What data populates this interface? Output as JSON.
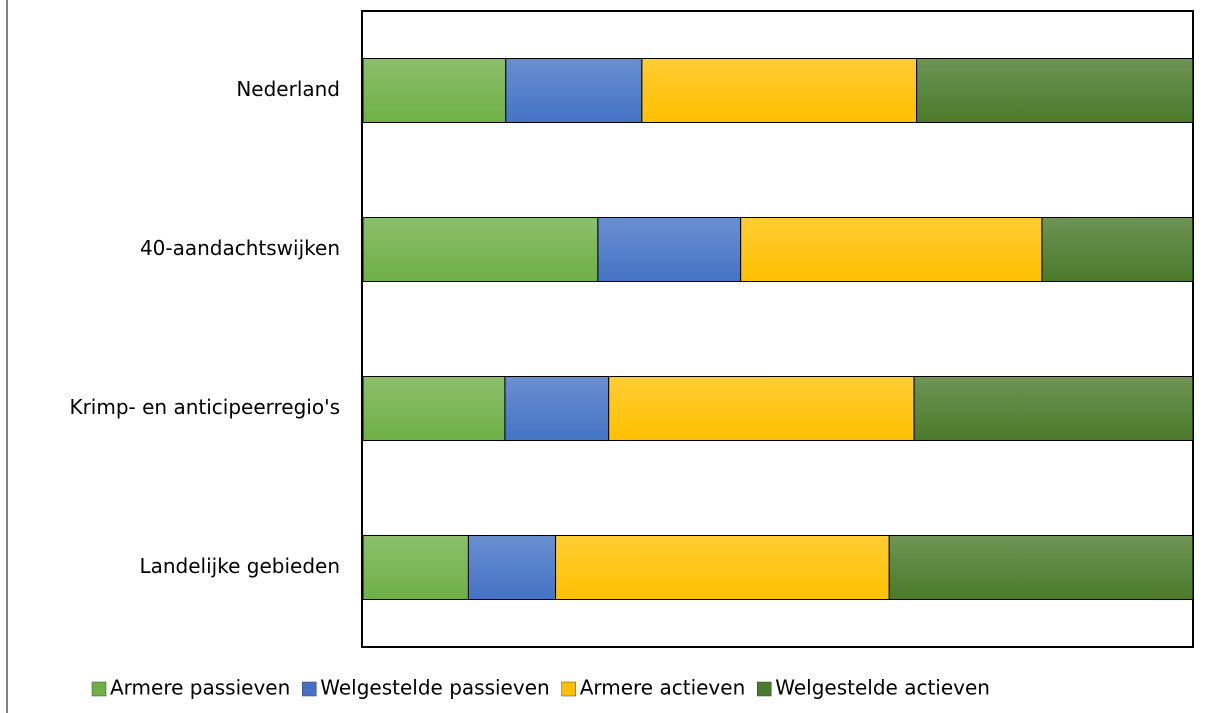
{
  "chart_data": {
    "type": "stacked-barh",
    "categories": [
      "Nederland",
      "40-aandachtswijken",
      "Krimp- en anticipeerregio's",
      "Landelijke gebieden"
    ],
    "series": [
      {
        "name": "Armere passieven",
        "color": "#6fb046",
        "values": [
          17.2,
          28.3,
          17.1,
          12.7
        ]
      },
      {
        "name": "Welgestelde passieven",
        "color": "#4473c5",
        "values": [
          16.4,
          17.2,
          12.5,
          10.5
        ]
      },
      {
        "name": "Armere actieven",
        "color": "#ffc000",
        "values": [
          33.1,
          36.3,
          36.8,
          40.2
        ]
      },
      {
        "name": "Welgestelde actieven",
        "color": "#4a7a2a",
        "values": [
          33.3,
          18.2,
          33.6,
          36.6
        ]
      }
    ],
    "xlim": [
      0,
      100
    ],
    "legend": "bottom"
  }
}
